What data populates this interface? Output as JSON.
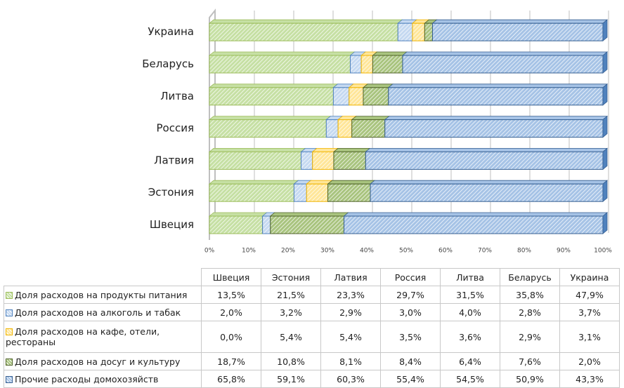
{
  "chart_data": {
    "type": "bar",
    "categories": [
      "Швеция",
      "Эстония",
      "Латвия",
      "Россия",
      "Литва",
      "Беларусь",
      "Украина"
    ],
    "series": [
      {
        "name": "Доля расходов на продукты питания",
        "color": "#c6e0a4",
        "stroke": "#9bbb59",
        "values": [
          13.5,
          21.5,
          23.3,
          29.7,
          31.5,
          35.8,
          47.9
        ],
        "value_labels": [
          "13,5%",
          "21,5%",
          "23,3%",
          "29,7%",
          "31,5%",
          "35,8%",
          "47,9%"
        ]
      },
      {
        "name": "Доля расходов на алкоголь и табак",
        "color": "#c5d9f1",
        "stroke": "#4f81bd",
        "values": [
          2.0,
          3.2,
          2.9,
          3.0,
          4.0,
          2.8,
          3.7
        ],
        "value_labels": [
          "2,0%",
          "3,2%",
          "2,9%",
          "3,0%",
          "4,0%",
          "2,8%",
          "3,7%"
        ]
      },
      {
        "name": "Доля расходов на кафе, отели, рестораны",
        "color": "#ffe699",
        "stroke": "#f0b400",
        "values": [
          0.0,
          5.4,
          5.4,
          3.5,
          3.6,
          2.9,
          3.1
        ],
        "value_labels": [
          "0,0%",
          "5,4%",
          "5,4%",
          "3,5%",
          "3,6%",
          "2,9%",
          "3,1%"
        ]
      },
      {
        "name": "Доля расходов на досуг и культуру",
        "color": "#a9c47f",
        "stroke": "#4f6228",
        "values": [
          18.7,
          10.8,
          8.1,
          8.4,
          6.4,
          7.6,
          2.0
        ],
        "value_labels": [
          "18,7%",
          "10,8%",
          "8,1%",
          "8,4%",
          "6,4%",
          "7,6%",
          "2,0%"
        ]
      },
      {
        "name": "Прочие расходы домохозяйств",
        "color": "#a6c3e6",
        "stroke": "#365f91",
        "values": [
          65.8,
          59.1,
          60.3,
          55.4,
          54.5,
          50.9,
          43.3
        ],
        "value_labels": [
          "65,8%",
          "59,1%",
          "60,3%",
          "55,4%",
          "54,5%",
          "50,9%",
          "43,3%"
        ]
      }
    ],
    "xlim": [
      0,
      100
    ],
    "xticks": [
      {
        "value": 0,
        "label": "0%"
      },
      {
        "value": 10,
        "label": "10%"
      },
      {
        "value": 20,
        "label": "20%"
      },
      {
        "value": 30,
        "label": "30%"
      },
      {
        "value": 40,
        "label": "40%"
      },
      {
        "value": 50,
        "label": "50%"
      },
      {
        "value": 60,
        "label": "60%"
      },
      {
        "value": 70,
        "label": "70%"
      },
      {
        "value": 80,
        "label": "80%"
      },
      {
        "value": 90,
        "label": "90%"
      },
      {
        "value": 100,
        "label": "100%"
      }
    ],
    "grid": true
  }
}
